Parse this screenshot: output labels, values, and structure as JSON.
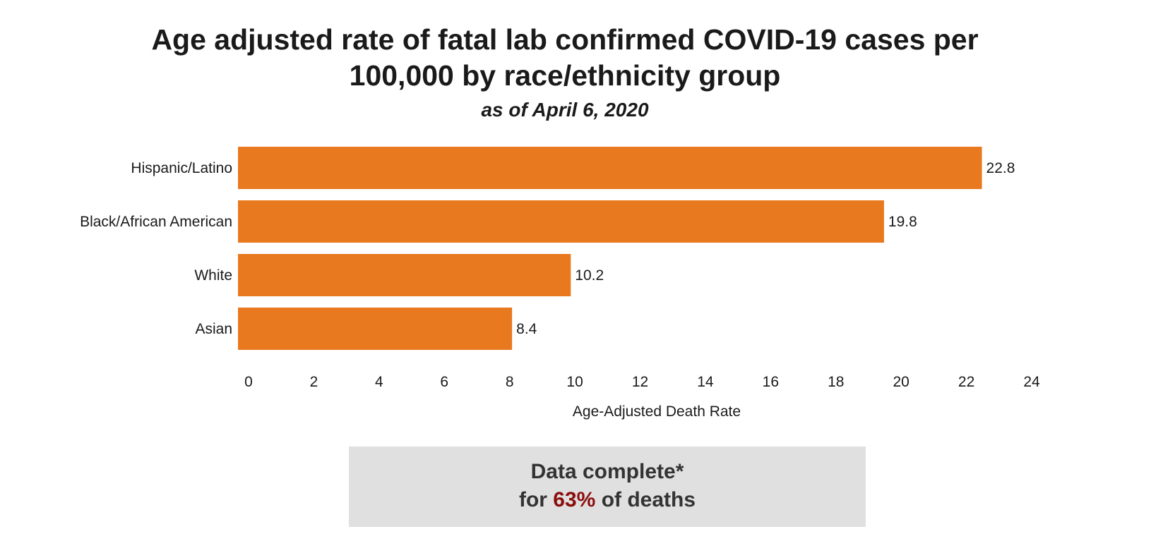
{
  "title_line1": "Age adjusted rate of fatal lab confirmed COVID-19 cases per",
  "title_line2": "100,000 by race/ethnicity group",
  "subtitle": "as of April 6, 2020",
  "chart_data": {
    "type": "bar",
    "orientation": "horizontal",
    "categories": [
      "Hispanic/Latino",
      "Black/African American",
      "White",
      "Asian"
    ],
    "values": [
      22.8,
      19.8,
      10.2,
      8.4
    ],
    "data_labels": [
      "22.8",
      "19.8",
      "10.2",
      "8.4"
    ],
    "xlabel": "Age-Adjusted Death Rate",
    "ylabel": "",
    "xlim": [
      0,
      24
    ],
    "xticks": [
      0,
      2,
      4,
      6,
      8,
      10,
      12,
      14,
      16,
      18,
      20,
      22,
      24
    ],
    "bar_color": "#e8791e",
    "grid": false
  },
  "note": {
    "line1": "Data complete*",
    "line2_prefix": "for",
    "line2_highlight": "63%",
    "line2_suffix": "of deaths",
    "highlight_color": "#8b0d0d",
    "background_color": "#e0e0e0"
  }
}
